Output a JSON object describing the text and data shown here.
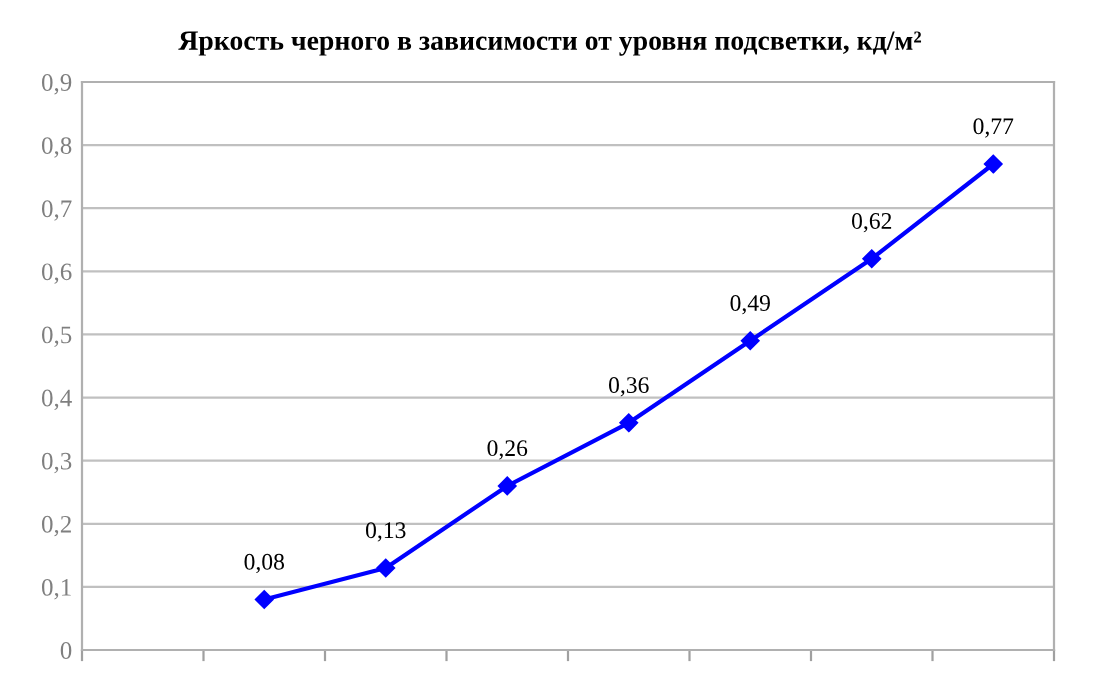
{
  "chart_data": {
    "type": "line",
    "title": "Яркость черного в зависимости от уровня подсветки, кд/м²",
    "categories": [
      null,
      null,
      null,
      null,
      null,
      null,
      null,
      null
    ],
    "series": [
      {
        "color": "#0000ff",
        "values": [
          null,
          0.08,
          0.13,
          0.26,
          0.36,
          0.49,
          0.62,
          0.77
        ],
        "value_labels": [
          null,
          "0,08",
          "0,13",
          "0,26",
          "0,36",
          "0,49",
          "0,62",
          "0,77"
        ]
      }
    ],
    "ylim": [
      0,
      0.9
    ],
    "yticks": [
      0,
      {
        "value": 0.1,
        "label": "0,1"
      },
      {
        "value": 0.2,
        "label": "0,2"
      },
      {
        "value": 0.3,
        "label": "0,3"
      },
      {
        "value": 0.4,
        "label": "0,4"
      },
      {
        "value": 0.5,
        "label": "0,5"
      },
      {
        "value": 0.6,
        "label": "0,6"
      },
      {
        "value": 0.7,
        "label": "0,7"
      },
      {
        "value": 0.8,
        "label": "0,8"
      },
      {
        "value": 0.9,
        "label": "0,9"
      }
    ],
    "grid": "y",
    "marker": "diamond",
    "line_style": "solid",
    "legend": false
  }
}
